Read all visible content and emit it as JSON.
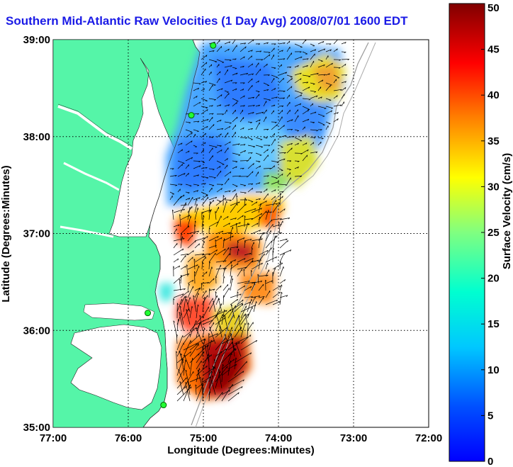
{
  "title": "Southern Mid-Atlantic Raw Velocities (1 Day Avg) 2008/07/01 1600 EDT",
  "map": {
    "xlabel": "Longitude (Degrees:Minutes)",
    "ylabel": "Latitude (Degrees:Minutes)",
    "x_ticks": [
      "77:00",
      "76:00",
      "75:00",
      "74:00",
      "73:00",
      "72:00"
    ],
    "y_ticks": [
      "39:00",
      "38:00",
      "37:00",
      "36:00",
      "35:00"
    ],
    "lon_range": [
      -77,
      -72
    ],
    "lat_range": [
      35,
      39
    ],
    "grid": "dotted",
    "land_color": "#55f5a8"
  },
  "colorbar": {
    "label": "Surface Velocity (cm/s)",
    "ticks": [
      "50",
      "45",
      "40",
      "35",
      "30",
      "25",
      "20",
      "15",
      "10",
      "5",
      "0"
    ],
    "range": [
      0,
      50
    ],
    "colormap": "jet"
  },
  "stations": [
    {
      "lon": -74.87,
      "lat": 38.94
    },
    {
      "lon": -75.16,
      "lat": 38.22
    },
    {
      "lon": -75.74,
      "lat": 36.18
    },
    {
      "lon": -75.53,
      "lat": 35.23
    }
  ]
}
